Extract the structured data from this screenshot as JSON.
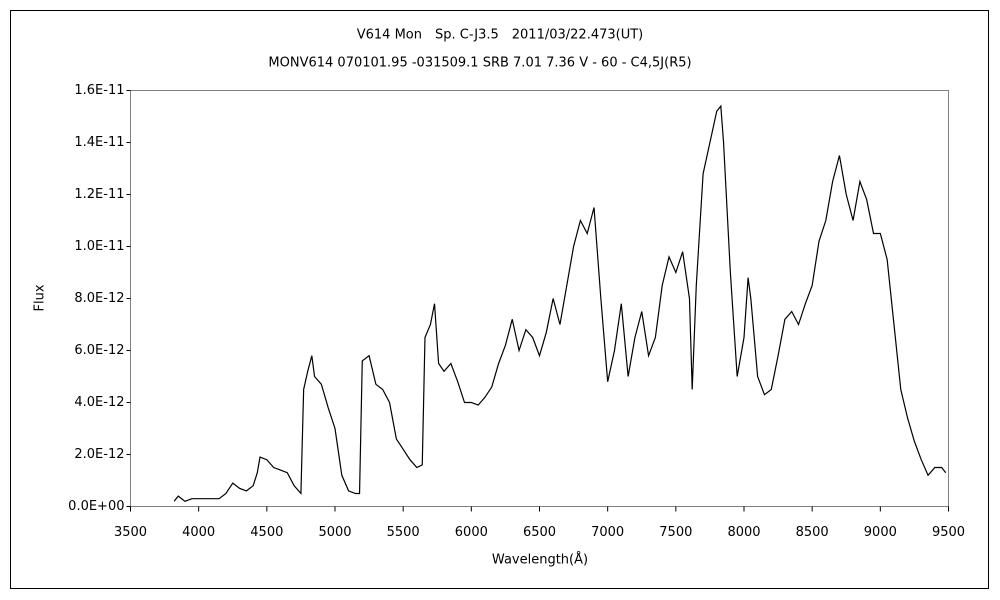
{
  "chart_data": {
    "type": "line",
    "title": "V614 Mon　Sp. C-J3.5　2011/03/22.473(UT)",
    "subtitle": "MONV614 070101.95 -031509.1 SRB 7.01 7.36 V - 60 - C4,5J(R5)",
    "x_label": "Wavelength(Å)",
    "y_label": "Flux",
    "color": "#000000",
    "xlim": [
      3500,
      9500
    ],
    "xticks": [
      3500,
      4000,
      4500,
      5000,
      5500,
      6000,
      6500,
      7000,
      7500,
      8000,
      8500,
      9000,
      9500
    ],
    "ylim": [
      0,
      1.6e-11
    ],
    "yticks": [
      {
        "value": 0,
        "label": "0.0E+00"
      },
      {
        "value": 2e-12,
        "label": "2.0E-12"
      },
      {
        "value": 4e-12,
        "label": "4.0E-12"
      },
      {
        "value": 6e-12,
        "label": "6.0E-12"
      },
      {
        "value": 8e-12,
        "label": "8.0E-12"
      },
      {
        "value": 1e-11,
        "label": "1.0E-11"
      },
      {
        "value": 1.2e-11,
        "label": "1.2E-11"
      },
      {
        "value": 1.4e-11,
        "label": "1.4E-11"
      },
      {
        "value": 1.6e-11,
        "label": "1.6E-11"
      }
    ],
    "grid": false,
    "x": [
      3820,
      3850,
      3900,
      3950,
      4000,
      4050,
      4100,
      4150,
      4200,
      4250,
      4300,
      4350,
      4400,
      4430,
      4450,
      4500,
      4550,
      4600,
      4650,
      4700,
      4750,
      4770,
      4800,
      4830,
      4850,
      4900,
      4950,
      5000,
      5050,
      5100,
      5150,
      5180,
      5200,
      5250,
      5300,
      5350,
      5400,
      5450,
      5500,
      5550,
      5600,
      5640,
      5660,
      5700,
      5730,
      5760,
      5800,
      5850,
      5900,
      5950,
      6000,
      6050,
      6100,
      6150,
      6200,
      6250,
      6300,
      6350,
      6400,
      6450,
      6500,
      6550,
      6600,
      6650,
      6700,
      6750,
      6800,
      6850,
      6900,
      6950,
      7000,
      7050,
      7100,
      7150,
      7200,
      7250,
      7300,
      7350,
      7400,
      7450,
      7500,
      7550,
      7600,
      7620,
      7650,
      7700,
      7750,
      7800,
      7830,
      7850,
      7900,
      7950,
      8000,
      8030,
      8050,
      8100,
      8150,
      8200,
      8250,
      8300,
      8350,
      8400,
      8450,
      8500,
      8550,
      8600,
      8650,
      8700,
      8750,
      8800,
      8850,
      8900,
      8950,
      9000,
      9050,
      9100,
      9150,
      9200,
      9250,
      9300,
      9350,
      9400,
      9450,
      9480
    ],
    "values": [
      2e-13,
      4e-13,
      2e-13,
      3e-13,
      3e-13,
      3e-13,
      3e-13,
      3e-13,
      5e-13,
      9e-13,
      7e-13,
      6e-13,
      8e-13,
      1.3e-12,
      1.9e-12,
      1.8e-12,
      1.5e-12,
      1.4e-12,
      1.3e-12,
      8e-13,
      5e-13,
      4.5e-12,
      5.2e-12,
      5.8e-12,
      5e-12,
      4.7e-12,
      3.8e-12,
      3e-12,
      1.2e-12,
      6e-13,
      5e-13,
      5e-13,
      5.6e-12,
      5.8e-12,
      4.7e-12,
      4.5e-12,
      4e-12,
      2.6e-12,
      2.2e-12,
      1.8e-12,
      1.5e-12,
      1.6e-12,
      6.5e-12,
      7e-12,
      7.8e-12,
      5.5e-12,
      5.2e-12,
      5.5e-12,
      4.8e-12,
      4e-12,
      4e-12,
      3.9e-12,
      4.2e-12,
      4.6e-12,
      5.5e-12,
      6.2e-12,
      7.2e-12,
      6e-12,
      6.8e-12,
      6.5e-12,
      5.8e-12,
      6.7e-12,
      8e-12,
      7e-12,
      8.5e-12,
      1e-11,
      1.1e-11,
      1.05e-11,
      1.15e-11,
      8e-12,
      4.8e-12,
      6e-12,
      7.8e-12,
      5e-12,
      6.5e-12,
      7.5e-12,
      5.8e-12,
      6.5e-12,
      8.5e-12,
      9.6e-12,
      9e-12,
      9.8e-12,
      8e-12,
      4.5e-12,
      8.5e-12,
      1.28e-11,
      1.4e-11,
      1.52e-11,
      1.54e-11,
      1.4e-11,
      9e-12,
      5e-12,
      6.5e-12,
      8.8e-12,
      8e-12,
      5e-12,
      4.3e-12,
      4.5e-12,
      5.8e-12,
      7.2e-12,
      7.5e-12,
      7e-12,
      7.8e-12,
      8.5e-12,
      1.02e-11,
      1.1e-11,
      1.25e-11,
      1.35e-11,
      1.2e-11,
      1.1e-11,
      1.25e-11,
      1.18e-11,
      1.05e-11,
      1.05e-11,
      9.5e-12,
      7e-12,
      4.5e-12,
      3.4e-12,
      2.5e-12,
      1.8e-12,
      1.2e-12,
      1.5e-12,
      1.5e-12,
      1.3e-12
    ]
  }
}
